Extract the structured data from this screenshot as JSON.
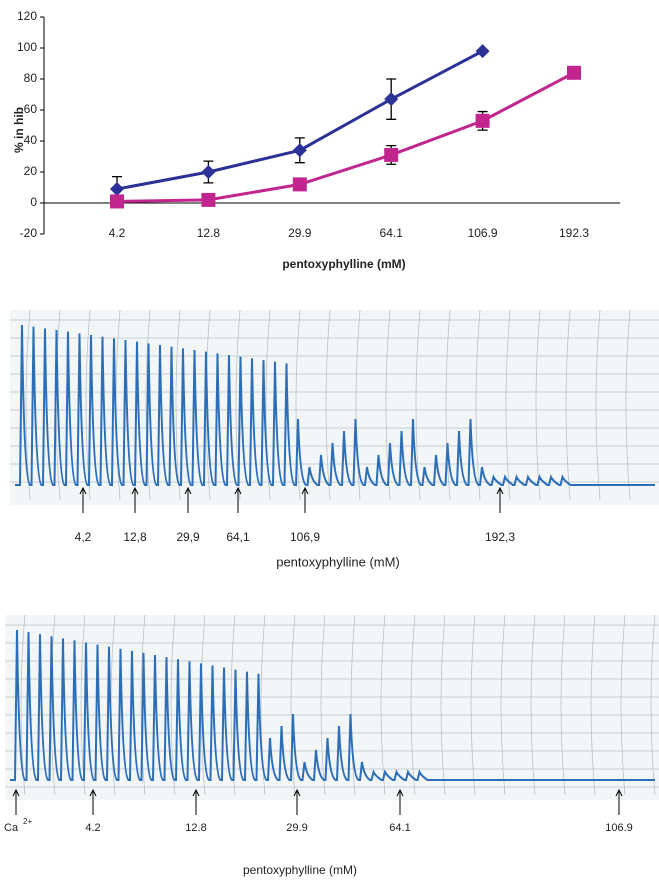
{
  "chart_data": {
    "type": "line",
    "y_label": "% in hib",
    "x_label": "pentoxyphylline (mM)",
    "categories": [
      "4.2",
      "12.8",
      "29.9",
      "64.1",
      "106.9",
      "192.3"
    ],
    "series": [
      {
        "color": "#2b3196",
        "marker": "diamond",
        "values": [
          9,
          20,
          34,
          67,
          98,
          null
        ],
        "errors": [
          8,
          7,
          8,
          13,
          0,
          null
        ]
      },
      {
        "color": "#c1268f",
        "marker": "square",
        "values": [
          1,
          2,
          12,
          31,
          53,
          84
        ],
        "errors": [
          0,
          0,
          0,
          6,
          6,
          2
        ]
      }
    ],
    "ylim": [
      -20,
      120
    ],
    "yticks": [
      -20,
      0,
      20,
      40,
      60,
      80,
      100,
      120
    ]
  },
  "recordings": [
    {
      "markers": [
        "4,2",
        "12,8",
        "29,9",
        "64,1",
        "106,9",
        "192,3"
      ],
      "x_label": "pentoxyphylline (mM)"
    },
    {
      "ion": {
        "symbol": "Ca",
        "charge": "2+"
      },
      "markers": [
        "4.2",
        "12.8",
        "29.9",
        "64.1",
        "106.9"
      ],
      "x_label": "pentoxyphylline (mM)"
    }
  ]
}
